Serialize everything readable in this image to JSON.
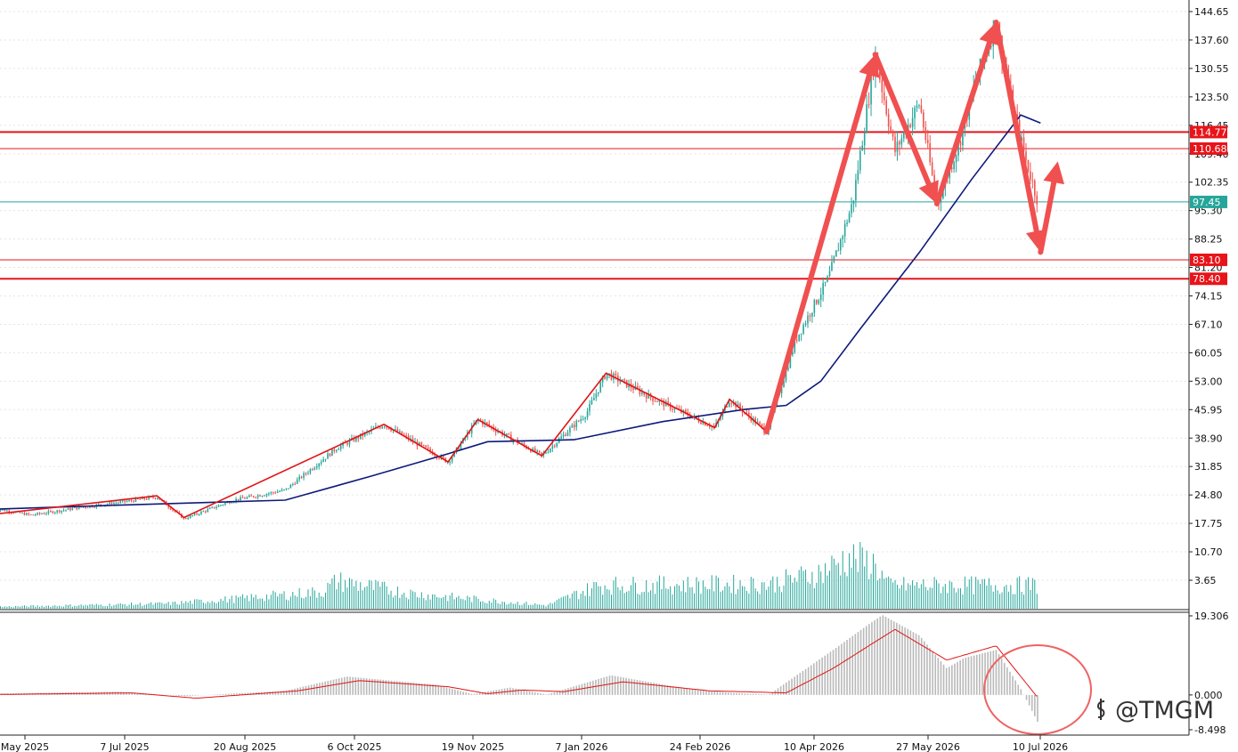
{
  "watermark": "@TMGM",
  "colors": {
    "bull": "#26a69a",
    "bear": "#ef5350",
    "ma": "#0d1a7a",
    "sr": "#e8141a",
    "arrow": "#f05050",
    "zigzag": "#e01515",
    "price_line": "#26a69a",
    "osc_hist": "#b9b9b9",
    "osc_signal": "#e01515",
    "circle": "#f06262",
    "axis_text": "#111111",
    "grid": "#e5e5e5"
  },
  "chart_data": [
    {
      "type": "candlestick",
      "title": "",
      "xlabel": "",
      "ylabel": "",
      "x_ticks": [
        "May 2025",
        "7 Jul 2025",
        "20 Aug 2025",
        "6 Oct 2025",
        "19 Nov 2025",
        "7 Jan 2026",
        "24 Feb 2026",
        "10 Apr 2026",
        "27 May 2026",
        "10 Jul 2026"
      ],
      "y_ticks": [
        144.65,
        137.6,
        130.55,
        123.5,
        116.45,
        109.4,
        102.35,
        95.3,
        88.25,
        81.2,
        74.15,
        67.1,
        60.05,
        53.0,
        45.95,
        38.9,
        31.85,
        24.8,
        17.75,
        10.7,
        3.65
      ],
      "ylim": [
        3.65,
        144.65
      ],
      "grid": true,
      "price_path": [
        {
          "date": "2025-05-15",
          "value": 21.5
        },
        {
          "date": "2025-05-30",
          "value": 19.8
        },
        {
          "date": "2025-06-20",
          "value": 21.8
        },
        {
          "date": "2025-07-05",
          "value": 23.0
        },
        {
          "date": "2025-07-20",
          "value": 24.3
        },
        {
          "date": "2025-07-31",
          "value": 18.9
        },
        {
          "date": "2025-08-20",
          "value": 23.5
        },
        {
          "date": "2025-09-10",
          "value": 26.0
        },
        {
          "date": "2025-10-01",
          "value": 36.5
        },
        {
          "date": "2025-10-20",
          "value": 42.3
        },
        {
          "date": "2025-11-15",
          "value": 33.0
        },
        {
          "date": "2025-11-27",
          "value": 43.5
        },
        {
          "date": "2025-12-23",
          "value": 34.5
        },
        {
          "date": "2026-01-10",
          "value": 45.0
        },
        {
          "date": "2026-01-18",
          "value": 55.0
        },
        {
          "date": "2026-02-05",
          "value": 49.0
        },
        {
          "date": "2026-03-03",
          "value": 41.5
        },
        {
          "date": "2026-03-09",
          "value": 48.5
        },
        {
          "date": "2026-03-24",
          "value": 40.5
        },
        {
          "date": "2026-04-05",
          "value": 63.5
        },
        {
          "date": "2026-04-18",
          "value": 78.5
        },
        {
          "date": "2026-04-28",
          "value": 97.5
        },
        {
          "date": "2026-05-07",
          "value": 134.0
        },
        {
          "date": "2026-05-15",
          "value": 110.0
        },
        {
          "date": "2026-05-25",
          "value": 122.0
        },
        {
          "date": "2026-06-01",
          "value": 97.0
        },
        {
          "date": "2026-06-10",
          "value": 112.0
        },
        {
          "date": "2026-06-17",
          "value": 128.0
        },
        {
          "date": "2026-06-25",
          "value": 142.0
        },
        {
          "date": "2026-07-02",
          "value": 120.0
        },
        {
          "date": "2026-07-07",
          "value": 108.0
        },
        {
          "date": "2026-07-12",
          "value": 97.4
        }
      ],
      "series": [
        {
          "name": "",
          "kind": "moving-average",
          "points": [
            {
              "date": "2025-05-01",
              "value": 21.0
            },
            {
              "date": "2025-07-01",
              "value": 22.2
            },
            {
              "date": "2025-09-10",
              "value": 23.5
            },
            {
              "date": "2025-10-15",
              "value": 29.5
            },
            {
              "date": "2025-11-15",
              "value": 35.0
            },
            {
              "date": "2025-12-01",
              "value": 38.0
            },
            {
              "date": "2026-01-05",
              "value": 38.5
            },
            {
              "date": "2026-02-10",
              "value": 43.0
            },
            {
              "date": "2026-03-15",
              "value": 46.0
            },
            {
              "date": "2026-04-01",
              "value": 47.0
            },
            {
              "date": "2026-04-15",
              "value": 53.0
            },
            {
              "date": "2026-05-01",
              "value": 66.0
            },
            {
              "date": "2026-05-25",
              "value": 85.0
            },
            {
              "date": "2026-06-15",
              "value": 103.0
            },
            {
              "date": "2026-07-05",
              "value": 119.0
            },
            {
              "date": "2026-07-13",
              "value": 117.0
            }
          ]
        }
      ],
      "horizontal_levels": [
        {
          "value": 114.77,
          "label": "114.77"
        },
        {
          "value": 110.68,
          "label": "110.68"
        },
        {
          "value": 97.45,
          "label": "97.45",
          "current_price": true
        },
        {
          "value": 83.1,
          "label": "83.10"
        },
        {
          "value": 78.4,
          "label": "78.40"
        }
      ],
      "zigzag_points": [
        {
          "date": "2025-05-15",
          "value": 20.0
        },
        {
          "date": "2025-07-20",
          "value": 24.6
        },
        {
          "date": "2025-07-31",
          "value": 19.2
        },
        {
          "date": "2025-10-20",
          "value": 42.3
        },
        {
          "date": "2025-11-15",
          "value": 33.0
        },
        {
          "date": "2025-11-27",
          "value": 43.5
        },
        {
          "date": "2025-12-23",
          "value": 34.5
        },
        {
          "date": "2026-01-18",
          "value": 55.0
        },
        {
          "date": "2026-03-03",
          "value": 41.5
        },
        {
          "date": "2026-03-09",
          "value": 48.5
        },
        {
          "date": "2026-03-24",
          "value": 40.5
        }
      ],
      "arrow_points": [
        {
          "date": "2026-03-24",
          "value": 40.5
        },
        {
          "date": "2026-05-07",
          "value": 134.0
        },
        {
          "date": "2026-06-01",
          "value": 97.0
        },
        {
          "date": "2026-06-25",
          "value": 142.0
        },
        {
          "date": "2026-07-13",
          "value": 85.0
        },
        {
          "date": "2026-07-20",
          "value": 107.5
        }
      ],
      "volume": {
        "ylim": [
          0,
          14
        ],
        "points": [
          {
            "date": "2025-05-01",
            "value": 0.3
          },
          {
            "date": "2025-07-25",
            "value": 1.2
          },
          {
            "date": "2025-08-25",
            "value": 2.5
          },
          {
            "date": "2025-09-25",
            "value": 4.0
          },
          {
            "date": "2025-10-01",
            "value": 6.5
          },
          {
            "date": "2025-11-01",
            "value": 3.5
          },
          {
            "date": "2025-12-25",
            "value": 0.8
          },
          {
            "date": "2026-01-15",
            "value": 5.5
          },
          {
            "date": "2026-03-25",
            "value": 5.8
          },
          {
            "date": "2026-04-15",
            "value": 8.5
          },
          {
            "date": "2026-04-26",
            "value": 12.0
          },
          {
            "date": "2026-05-07",
            "value": 10.5
          },
          {
            "date": "2026-05-12",
            "value": 5.5
          },
          {
            "date": "2026-07-13",
            "value": 5.5
          }
        ]
      }
    },
    {
      "type": "bar",
      "title": "",
      "xlabel": "",
      "ylabel": "",
      "y_ticks": [
        19.306,
        0.0,
        -8.498
      ],
      "y_tick_labels": [
        "19.306",
        "0.000",
        "-8.498"
      ],
      "ylim": [
        -8.498,
        19.306
      ],
      "grid": false,
      "histogram": [
        {
          "date": "2025-05-01",
          "value": 0.2
        },
        {
          "date": "2025-07-05",
          "value": 0.8
        },
        {
          "date": "2025-07-31",
          "value": -0.3
        },
        {
          "date": "2025-09-10",
          "value": 1.0
        },
        {
          "date": "2025-10-05",
          "value": 4.5
        },
        {
          "date": "2025-11-10",
          "value": 2.5
        },
        {
          "date": "2025-11-25",
          "value": 0.2
        },
        {
          "date": "2025-12-10",
          "value": 1.8
        },
        {
          "date": "2025-12-25",
          "value": 0.1
        },
        {
          "date": "2026-01-20",
          "value": 4.8
        },
        {
          "date": "2026-02-20",
          "value": 1.5
        },
        {
          "date": "2026-03-10",
          "value": 0.5
        },
        {
          "date": "2026-03-25",
          "value": 0.1
        },
        {
          "date": "2026-04-20",
          "value": 11.0
        },
        {
          "date": "2026-05-05",
          "value": 17.5
        },
        {
          "date": "2026-05-10",
          "value": 19.5
        },
        {
          "date": "2026-05-25",
          "value": 14.5
        },
        {
          "date": "2026-06-05",
          "value": 6.5
        },
        {
          "date": "2026-06-12",
          "value": 9.0
        },
        {
          "date": "2026-06-25",
          "value": 11.0
        },
        {
          "date": "2026-07-05",
          "value": 1.5
        },
        {
          "date": "2026-07-13",
          "value": -8.0
        }
      ],
      "series": [
        {
          "name": "",
          "kind": "signal",
          "points": [
            {
              "date": "2025-05-01",
              "value": 0.0
            },
            {
              "date": "2025-07-10",
              "value": 0.5
            },
            {
              "date": "2025-08-05",
              "value": -0.8
            },
            {
              "date": "2025-09-15",
              "value": 1.0
            },
            {
              "date": "2025-10-10",
              "value": 3.5
            },
            {
              "date": "2025-11-15",
              "value": 2.0
            },
            {
              "date": "2025-12-01",
              "value": 0.3
            },
            {
              "date": "2025-12-15",
              "value": 1.2
            },
            {
              "date": "2026-01-01",
              "value": 0.8
            },
            {
              "date": "2026-01-25",
              "value": 3.2
            },
            {
              "date": "2026-03-01",
              "value": 1.0
            },
            {
              "date": "2026-04-01",
              "value": 0.5
            },
            {
              "date": "2026-04-20",
              "value": 6.5
            },
            {
              "date": "2026-05-15",
              "value": 16.0
            },
            {
              "date": "2026-06-05",
              "value": 8.5
            },
            {
              "date": "2026-06-25",
              "value": 12.0
            },
            {
              "date": "2026-07-13",
              "value": -1.5
            }
          ]
        }
      ]
    }
  ]
}
